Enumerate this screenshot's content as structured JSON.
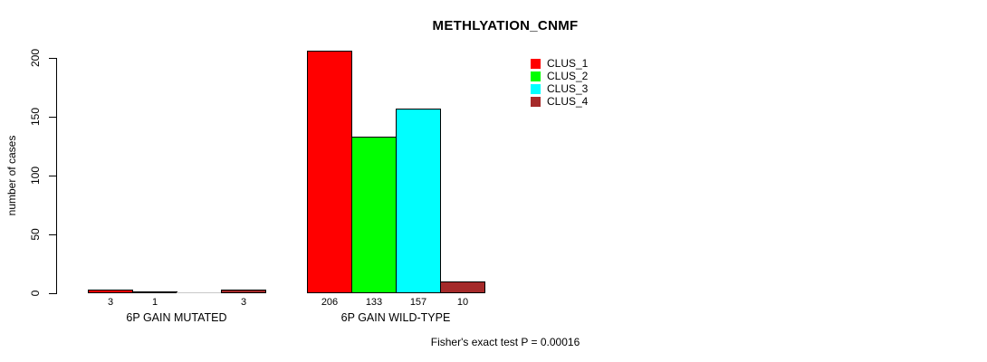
{
  "title": "METHLYATION_CNMF",
  "chart_data": {
    "type": "bar",
    "title": "METHLYATION_CNMF",
    "ylabel": "number of cases",
    "xlabel": "",
    "ylim": [
      0,
      200
    ],
    "yticks": [
      "0",
      "50",
      "100",
      "150",
      "200"
    ],
    "grid": false,
    "legend_position": "top-right",
    "series_names": [
      "CLUS_1",
      "CLUS_2",
      "CLUS_3",
      "CLUS_4"
    ],
    "series_colors": [
      "#FF0000",
      "#00FF00",
      "#00FFFF",
      "#A52A2A"
    ],
    "groups": [
      {
        "label": "6P GAIN MUTATED",
        "values": [
          3,
          1,
          0,
          3
        ],
        "bar_labels": [
          "3",
          "1",
          "",
          "3"
        ]
      },
      {
        "label": "6P GAIN WILD-TYPE",
        "values": [
          206,
          133,
          157,
          10
        ],
        "bar_labels": [
          "206",
          "133",
          "157",
          "10"
        ]
      }
    ],
    "annotation": "Fisher's exact test P = 0.00016"
  }
}
